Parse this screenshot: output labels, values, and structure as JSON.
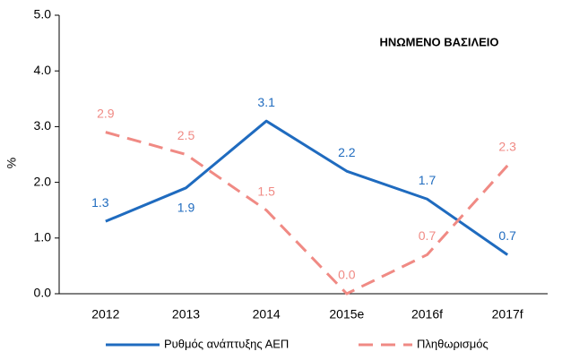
{
  "chart_data": {
    "type": "line",
    "annotation": "ΗΝΩΜΕΝΟ ΒΑΣΙΛΕΙΟ",
    "y_label": "%",
    "categories": [
      "2012",
      "2013",
      "2014",
      "2015e",
      "2016f",
      "2017f"
    ],
    "series": [
      {
        "name": "Ρυθμός ανάπτυξης ΑΕΠ",
        "color": "#1f6bbf",
        "dash": false,
        "values": [
          1.3,
          1.9,
          3.1,
          2.2,
          1.7,
          0.7
        ],
        "value_labels": [
          "1.3",
          "1.9",
          "3.1",
          "2.2",
          "1.7",
          "0.7"
        ]
      },
      {
        "name": "Πληθωρισμός",
        "color": "#f08a84",
        "dash": true,
        "values": [
          2.9,
          2.5,
          1.5,
          0,
          0.7,
          2.3
        ],
        "value_labels": [
          "2.9",
          "2.5",
          "1.5",
          "0.0",
          "0.7",
          "2.3"
        ]
      }
    ],
    "ylim": [
      0,
      5
    ],
    "yticks": [
      {
        "value": 0,
        "label": "0.0"
      },
      {
        "value": 1,
        "label": "1.0"
      },
      {
        "value": 2,
        "label": "2.0"
      },
      {
        "value": 3,
        "label": "3.0"
      },
      {
        "value": 4,
        "label": "4.0"
      },
      {
        "value": 5,
        "label": "5.0"
      }
    ],
    "grid": false,
    "legend": "bottom"
  }
}
